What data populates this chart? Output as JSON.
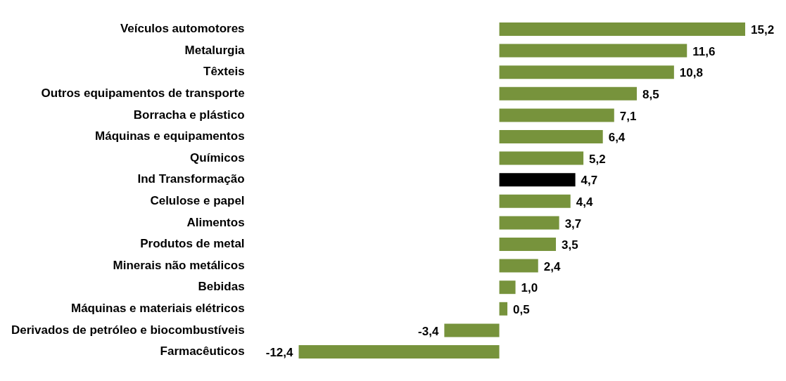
{
  "chart_data": {
    "type": "bar",
    "orientation": "horizontal",
    "categories": [
      "Veículos automotores",
      "Metalurgia",
      "Têxteis",
      "Outros equipamentos de transporte",
      "Borracha e plástico",
      "Máquinas e equipamentos",
      "Químicos",
      "Ind Transformação",
      "Celulose e papel",
      "Alimentos",
      "Produtos de metal",
      "Minerais não metálicos",
      "Bebidas",
      "Máquinas e materiais elétricos",
      "Derivados de petróleo e biocombustíveis",
      "Farmacêuticos"
    ],
    "values": [
      15.2,
      11.6,
      10.8,
      8.5,
      7.1,
      6.4,
      5.2,
      4.7,
      4.4,
      3.7,
      3.5,
      2.4,
      1.0,
      0.5,
      -3.4,
      -12.4
    ],
    "value_labels": [
      "15,2",
      "11,6",
      "10,8",
      "8,5",
      "7,1",
      "6,4",
      "5,2",
      "4,7",
      "4,4",
      "3,7",
      "3,5",
      "2,4",
      "1,0",
      "0,5",
      "-3,4",
      "-12,4"
    ],
    "colors": [
      "#77933c",
      "#77933c",
      "#77933c",
      "#77933c",
      "#77933c",
      "#77933c",
      "#77933c",
      "#000000",
      "#77933c",
      "#77933c",
      "#77933c",
      "#77933c",
      "#77933c",
      "#77933c",
      "#77933c",
      "#77933c"
    ],
    "tick_labels": "y",
    "grid": false,
    "legend": false
  }
}
